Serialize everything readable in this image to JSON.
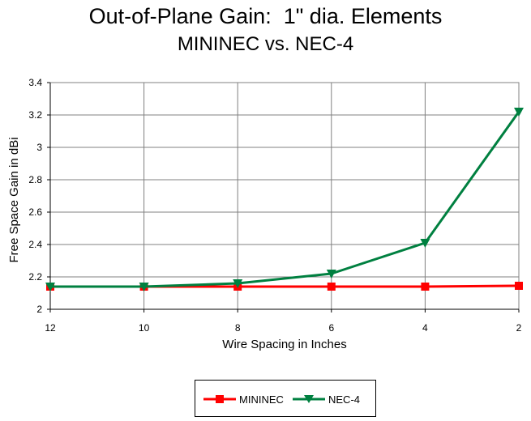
{
  "chart_data": {
    "type": "line",
    "title": "Out-of-Plane Gain:  1\" dia. Elements",
    "subtitle": "MININEC vs. NEC-4",
    "xlabel": "Wire Spacing in Inches",
    "ylabel": "Free Space Gain in dBi",
    "x": [
      12,
      10,
      8,
      6,
      4,
      2
    ],
    "x_tick_labels": [
      "12",
      "10",
      "8",
      "6",
      "4",
      "2"
    ],
    "y_tick_labels": [
      "2",
      "2.2",
      "2.4",
      "2.6",
      "2.8",
      "3",
      "3.2",
      "3.4"
    ],
    "ylim": [
      2,
      3.4
    ],
    "x_reversed": true,
    "grid": true,
    "legend_position": "bottom",
    "series": [
      {
        "name": "MININEC",
        "color": "#ff0000",
        "marker": "square",
        "values": [
          2.14,
          2.14,
          2.14,
          2.14,
          2.14,
          2.145
        ]
      },
      {
        "name": "NEC-4",
        "color": "#008040",
        "marker": "triangle-down",
        "values": [
          2.14,
          2.14,
          2.16,
          2.22,
          2.41,
          3.22
        ]
      }
    ]
  }
}
